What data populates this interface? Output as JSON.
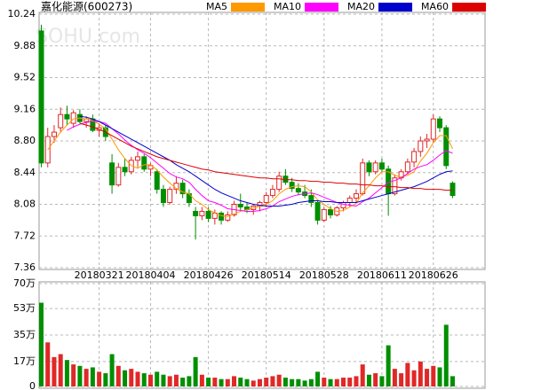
{
  "chart_data": [
    {
      "type": "candlestick",
      "title": "嘉化能源(600273)",
      "watermark": "SOHU.com",
      "categories": [
        null,
        null,
        null,
        null,
        null,
        null,
        null,
        null,
        null,
        "20180321",
        null,
        null,
        null,
        null,
        null,
        null,
        null,
        "20180404",
        null,
        null,
        null,
        null,
        null,
        null,
        null,
        null,
        "20180426",
        null,
        null,
        null,
        null,
        null,
        null,
        null,
        null,
        "20180514",
        null,
        null,
        null,
        null,
        null,
        null,
        null,
        null,
        "20180528",
        null,
        null,
        null,
        null,
        null,
        null,
        null,
        null,
        "20180611",
        null,
        null,
        null,
        null,
        null,
        null,
        null,
        "20180626",
        null,
        null,
        null
      ],
      "open": [
        10.05,
        8.55,
        8.85,
        8.95,
        9.1,
        9.0,
        9.1,
        9.02,
        9.05,
        8.92,
        8.95,
        8.55,
        8.3,
        8.5,
        8.45,
        8.58,
        8.62,
        8.48,
        8.45,
        8.25,
        8.1,
        8.25,
        8.32,
        8.2,
        8.0,
        7.95,
        8.0,
        7.92,
        7.98,
        7.9,
        7.96,
        8.08,
        8.05,
        8.02,
        8.06,
        8.1,
        8.18,
        8.25,
        8.4,
        8.33,
        8.26,
        8.22,
        8.18,
        8.1,
        7.9,
        8.02,
        7.96,
        8.04,
        8.1,
        8.15,
        8.2,
        8.55,
        8.45,
        8.55,
        8.48,
        8.2,
        8.38,
        8.45,
        8.56,
        8.68,
        8.8,
        8.82,
        9.05,
        8.95,
        8.32
      ],
      "high": [
        10.12,
        8.95,
        8.98,
        9.18,
        9.2,
        9.15,
        9.16,
        9.08,
        9.1,
        9.0,
        8.98,
        8.65,
        8.55,
        8.6,
        8.62,
        8.68,
        8.65,
        8.55,
        8.48,
        8.3,
        8.28,
        8.4,
        8.36,
        8.25,
        8.05,
        8.05,
        8.05,
        8.02,
        8.0,
        8.0,
        8.12,
        8.2,
        8.1,
        8.08,
        8.12,
        8.22,
        8.3,
        8.45,
        8.48,
        8.38,
        8.32,
        8.3,
        8.25,
        8.12,
        8.05,
        8.06,
        8.06,
        8.12,
        8.18,
        8.25,
        8.6,
        8.58,
        8.58,
        8.6,
        8.52,
        8.42,
        8.48,
        8.6,
        8.72,
        8.85,
        8.88,
        9.1,
        9.08,
        8.98,
        8.34
      ],
      "low": [
        8.5,
        8.5,
        8.78,
        8.9,
        8.98,
        8.95,
        9.0,
        8.95,
        8.9,
        8.85,
        8.8,
        8.2,
        8.28,
        8.4,
        8.42,
        8.5,
        8.45,
        8.4,
        8.2,
        8.05,
        8.08,
        8.2,
        8.15,
        8.05,
        7.68,
        7.9,
        7.88,
        7.85,
        7.85,
        7.88,
        7.94,
        8.0,
        7.98,
        7.96,
        8.0,
        8.05,
        8.15,
        8.22,
        8.3,
        8.22,
        8.18,
        8.15,
        8.05,
        7.85,
        7.88,
        7.92,
        7.94,
        8.0,
        8.05,
        8.1,
        8.18,
        8.4,
        8.42,
        8.45,
        7.95,
        8.18,
        8.35,
        8.42,
        8.5,
        8.62,
        8.72,
        8.78,
        8.9,
        8.48,
        8.15
      ],
      "close": [
        8.55,
        8.85,
        8.9,
        9.1,
        9.05,
        9.12,
        9.02,
        9.05,
        8.92,
        8.95,
        8.85,
        8.3,
        8.5,
        8.45,
        8.58,
        8.62,
        8.48,
        8.52,
        8.25,
        8.1,
        8.25,
        8.32,
        8.2,
        8.1,
        7.95,
        8.0,
        7.92,
        7.98,
        7.9,
        7.96,
        8.08,
        8.05,
        8.02,
        8.06,
        8.1,
        8.18,
        8.25,
        8.4,
        8.33,
        8.26,
        8.22,
        8.18,
        8.1,
        7.9,
        8.02,
        7.96,
        8.04,
        8.1,
        8.15,
        8.2,
        8.55,
        8.45,
        8.55,
        8.48,
        8.2,
        8.38,
        8.45,
        8.56,
        8.68,
        8.8,
        8.82,
        9.05,
        8.95,
        8.52,
        8.18
      ],
      "up_color": "#e02828",
      "down_color": "#008f00",
      "series": [
        {
          "name": "MA5",
          "color": "#ff9900",
          "values": [
            null,
            8.7,
            8.8,
            8.9,
            8.98,
            9.05,
            9.06,
            9.05,
            9.03,
            8.99,
            8.94,
            8.82,
            8.7,
            8.6,
            8.52,
            8.49,
            8.53,
            8.53,
            8.47,
            8.39,
            8.32,
            8.26,
            8.22,
            8.2,
            8.12,
            8.08,
            8.02,
            7.98,
            7.95,
            7.94,
            7.97,
            8.0,
            8.02,
            8.04,
            8.06,
            8.08,
            8.12,
            8.2,
            8.25,
            8.28,
            8.29,
            8.28,
            8.22,
            8.13,
            8.08,
            8.03,
            8.0,
            8.01,
            8.05,
            8.09,
            8.21,
            8.29,
            8.38,
            8.45,
            8.45,
            8.41,
            8.39,
            8.41,
            8.45,
            8.57,
            8.66,
            8.78,
            8.86,
            8.86,
            8.71
          ]
        },
        {
          "name": "MA10",
          "color": "#ff00ff",
          "values": [
            null,
            null,
            null,
            null,
            8.92,
            8.96,
            8.99,
            9.01,
            9.02,
            9.02,
            9.0,
            8.94,
            8.88,
            8.81,
            8.75,
            8.7,
            8.66,
            8.61,
            8.55,
            8.49,
            8.43,
            8.39,
            8.37,
            8.33,
            8.25,
            8.18,
            8.12,
            8.1,
            8.07,
            8.03,
            8.02,
            8.01,
            8.0,
            8.0,
            8.01,
            8.03,
            8.06,
            8.11,
            8.14,
            8.17,
            8.19,
            8.2,
            8.21,
            8.19,
            8.16,
            8.13,
            8.1,
            8.08,
            8.07,
            8.06,
            8.11,
            8.15,
            8.21,
            8.27,
            8.33,
            8.35,
            8.38,
            8.43,
            8.48,
            8.51,
            8.53,
            8.58,
            8.64,
            8.69,
            8.66
          ]
        },
        {
          "name": "MA20",
          "color": "#0000cc",
          "values": [
            null,
            null,
            null,
            null,
            null,
            null,
            9.08,
            9.07,
            9.05,
            9.02,
            8.98,
            8.94,
            8.9,
            8.86,
            8.82,
            8.78,
            8.74,
            8.7,
            8.66,
            8.62,
            8.58,
            8.53,
            8.49,
            8.45,
            8.4,
            8.35,
            8.3,
            8.25,
            8.21,
            8.18,
            8.15,
            8.12,
            8.1,
            8.08,
            8.07,
            8.06,
            8.06,
            8.06,
            8.07,
            8.08,
            8.1,
            8.11,
            8.12,
            8.12,
            8.11,
            8.11,
            8.1,
            8.1,
            8.1,
            8.1,
            8.12,
            8.14,
            8.16,
            8.18,
            8.2,
            8.22,
            8.24,
            8.26,
            8.28,
            8.31,
            8.34,
            8.38,
            8.42,
            8.45,
            8.46
          ]
        },
        {
          "name": "MA60",
          "color": "#dd0000",
          "values": [
            null,
            null,
            null,
            null,
            null,
            null,
            9.0,
            8.98,
            8.96,
            8.93,
            8.9,
            8.86,
            8.82,
            8.78,
            8.74,
            8.71,
            8.68,
            8.65,
            8.62,
            8.6,
            8.58,
            8.56,
            8.54,
            8.52,
            8.5,
            8.48,
            8.47,
            8.45,
            8.44,
            8.43,
            8.42,
            8.41,
            8.4,
            8.39,
            8.38,
            8.38,
            8.37,
            8.37,
            8.36,
            8.36,
            8.35,
            8.35,
            8.34,
            8.34,
            8.33,
            8.33,
            8.32,
            8.32,
            8.31,
            8.31,
            8.3,
            8.3,
            8.29,
            8.29,
            8.28,
            8.28,
            8.27,
            8.27,
            8.26,
            8.26,
            8.25,
            8.25,
            8.25,
            8.24,
            8.24
          ]
        }
      ],
      "ylim": [
        7.36,
        10.24
      ],
      "yticks": [
        10.24,
        9.88,
        9.52,
        9.16,
        {
          "value": 8.8,
          "label": "8.80"
        },
        8.44,
        8.08,
        7.72,
        7.36
      ],
      "grid": true
    },
    {
      "type": "bar",
      "values": [
        57,
        30,
        20,
        22,
        18,
        15,
        14,
        12,
        13,
        10,
        9,
        22,
        14,
        11,
        12,
        10,
        9,
        8,
        10,
        8,
        7,
        8,
        6,
        7,
        20,
        8,
        6,
        6,
        5,
        5,
        7,
        6,
        5,
        4,
        5,
        6,
        7,
        8,
        6,
        5,
        5,
        4,
        5,
        10,
        6,
        5,
        5,
        6,
        6,
        7,
        15,
        8,
        9,
        7,
        28,
        12,
        9,
        16,
        11,
        17,
        12,
        14,
        13,
        42,
        7
      ],
      "ylim": [
        0,
        70
      ],
      "yticks": [
        {
          "value": 70,
          "label": "70万"
        },
        {
          "value": 53,
          "label": "53万"
        },
        {
          "value": 35,
          "label": "35万"
        },
        {
          "value": 17,
          "label": "17万"
        },
        0
      ],
      "grid": true
    }
  ]
}
